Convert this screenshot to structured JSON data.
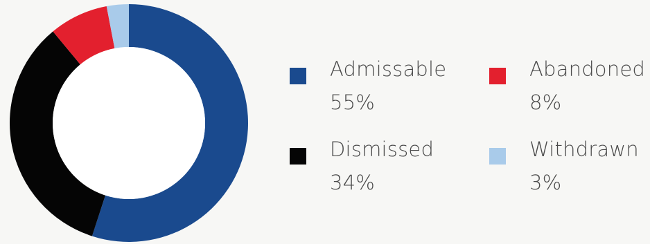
{
  "chart_data": {
    "type": "pie",
    "donut": true,
    "legend_position": "right",
    "categories": [
      "Admissable",
      "Dismissed",
      "Abandoned",
      "Withdrawn"
    ],
    "values": [
      55,
      34,
      8,
      3
    ],
    "value_labels": [
      "55%",
      "34%",
      "8%",
      "3%"
    ],
    "colors": [
      "#1a4a8e",
      "#050505",
      "#e3202e",
      "#a9cbea"
    ]
  }
}
